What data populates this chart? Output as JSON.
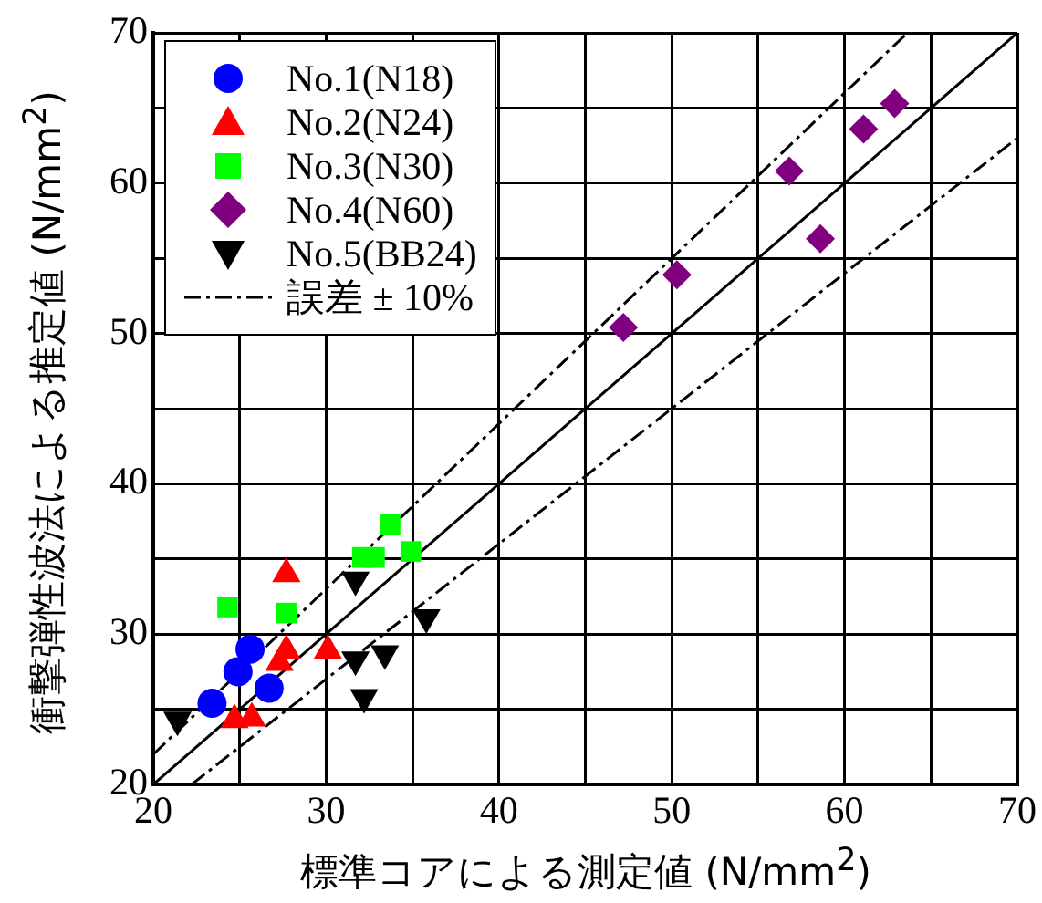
{
  "chart_data": {
    "type": "scatter",
    "xlabel": "標準コアによる測定値 (N/mm$^{2}$)",
    "ylabel": "衝撃弾性波法による推定値 (N/mm$^{2}$)",
    "xlim": [
      20,
      70
    ],
    "ylim": [
      20,
      70
    ],
    "xticks": [
      20,
      {
        "value": 25,
        "label": null
      },
      30,
      {
        "value": 35,
        "label": null
      },
      40,
      {
        "value": 45,
        "label": null
      },
      50,
      {
        "value": 55,
        "label": null
      },
      60,
      {
        "value": 65,
        "label": null
      },
      70
    ],
    "yticks": [
      20,
      {
        "value": 25,
        "label": null
      },
      30,
      {
        "value": 35,
        "label": null
      },
      40,
      {
        "value": 45,
        "label": null
      },
      50,
      {
        "value": 55,
        "label": null
      },
      60,
      {
        "value": 65,
        "label": null
      },
      70
    ],
    "grid": true,
    "legend": "top left",
    "series": [
      {
        "name": "No.1(N18)",
        "color": "#0000ff",
        "marker": "circle",
        "x": [
          25.6,
          24.9,
          26.7,
          23.4
        ],
        "values": [
          29.0,
          27.5,
          26.4,
          25.4
        ]
      },
      {
        "name": "No.2(N24)",
        "color": "#ff0000",
        "marker": "triangle",
        "x": [
          27.7,
          27.7,
          27.3,
          30.1,
          24.7,
          25.7
        ],
        "values": [
          34.0,
          28.9,
          28.1,
          28.9,
          24.3,
          24.4
        ]
      },
      {
        "name": "No.3(N30)",
        "color": "#00ff00",
        "marker": "square",
        "x": [
          24.3,
          27.7,
          33.7,
          32.1,
          32.8,
          34.9
        ],
        "values": [
          31.8,
          31.4,
          37.3,
          35.1,
          35.1,
          35.5
        ]
      },
      {
        "name": "No.4(N60)",
        "color": "#800080",
        "marker": "diamond",
        "x": [
          47.2,
          50.3,
          56.8,
          58.6,
          61.1,
          62.9
        ],
        "values": [
          50.4,
          53.9,
          60.8,
          56.3,
          63.6,
          65.3
        ]
      },
      {
        "name": "No.5(BB24)",
        "color": "#000000",
        "marker": "triangle-down",
        "x": [
          21.4,
          31.7,
          35.8,
          31.7,
          33.4,
          32.2
        ],
        "values": [
          24.3,
          33.6,
          31.1,
          28.3,
          28.7,
          25.8
        ]
      },
      {
        "name": "誤差 ± 10%",
        "type": "line",
        "color": "#000000",
        "line_style": "dashdot",
        "marker": "none",
        "x": [
          20,
          63.64
        ],
        "values": [
          22,
          70
        ]
      },
      {
        "type": "line",
        "color": "#000000",
        "line_style": "dashdot",
        "marker": "none",
        "x": [
          22.22,
          70
        ],
        "values": [
          20,
          63
        ]
      },
      {
        "type": "line",
        "color": "#000000",
        "line_style": "solid",
        "marker": "none",
        "x": [
          20,
          70
        ],
        "values": [
          20,
          70
        ]
      }
    ]
  }
}
